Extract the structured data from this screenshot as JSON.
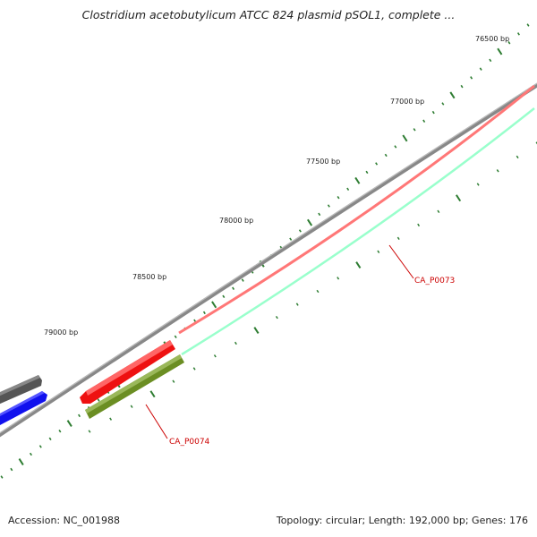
{
  "title": "Clostridium acetobutylicum ATCC 824 plasmid pSOL1, complete ...",
  "footer": {
    "accession": "Accession: NC_001988",
    "summary": "Topology: circular; Length: 192,000 bp; Genes: 176"
  },
  "tick_labels": [
    "76500 bp",
    "77000 bp",
    "77500 bp",
    "78000 bp",
    "78500 bp",
    "79000 bp"
  ],
  "gene_labels": [
    "CA_P0073",
    "CA_P0074"
  ],
  "colors": {
    "backbone": "#888888",
    "gene_forward": "#ee1111",
    "gene_reverse": "#22ee99",
    "gene_olive": "#6b8e23",
    "gene_grey": "#555555",
    "gene_blue": "#1111ee",
    "ticks": "#2e7d32",
    "gene_label": "#cc0000"
  }
}
